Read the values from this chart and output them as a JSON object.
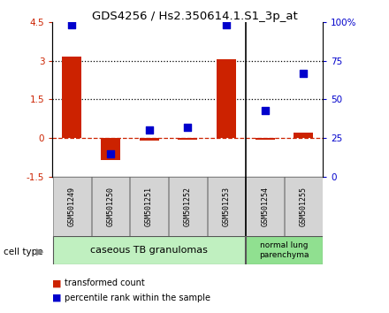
{
  "title": "GDS4256 / Hs2.350614.1.S1_3p_at",
  "samples": [
    "GSM501249",
    "GSM501250",
    "GSM501251",
    "GSM501252",
    "GSM501253",
    "GSM501254",
    "GSM501255"
  ],
  "red_values": [
    3.15,
    -0.85,
    -0.08,
    -0.05,
    3.05,
    -0.05,
    0.2
  ],
  "blue_values_pct": [
    98,
    15,
    30,
    32,
    98,
    43,
    67
  ],
  "ylim_left": [
    -1.5,
    4.5
  ],
  "ylim_right": [
    0,
    100
  ],
  "yticks_left": [
    -1.5,
    0,
    1.5,
    3,
    4.5
  ],
  "yticks_right": [
    0,
    25,
    50,
    75,
    100
  ],
  "ytick_labels_left": [
    "-1.5",
    "0",
    "1.5",
    "3",
    "4.5"
  ],
  "ytick_labels_right": [
    "0",
    "25",
    "50",
    "75",
    "100%"
  ],
  "hlines": [
    3.0,
    1.5
  ],
  "group1_label": "caseous TB granulomas",
  "group1_end": 4,
  "group2_label": "normal lung\nparenchyma",
  "group1_color": "#c0f0c0",
  "group2_color": "#90e090",
  "bar_color": "#cc2200",
  "dot_color": "#0000cc",
  "bar_width": 0.5,
  "dot_size": 40,
  "legend_red": "transformed count",
  "legend_blue": "percentile rank within the sample",
  "cell_type_label": "cell type",
  "separator_x": 4.5,
  "xlim": [
    -0.5,
    6.5
  ]
}
